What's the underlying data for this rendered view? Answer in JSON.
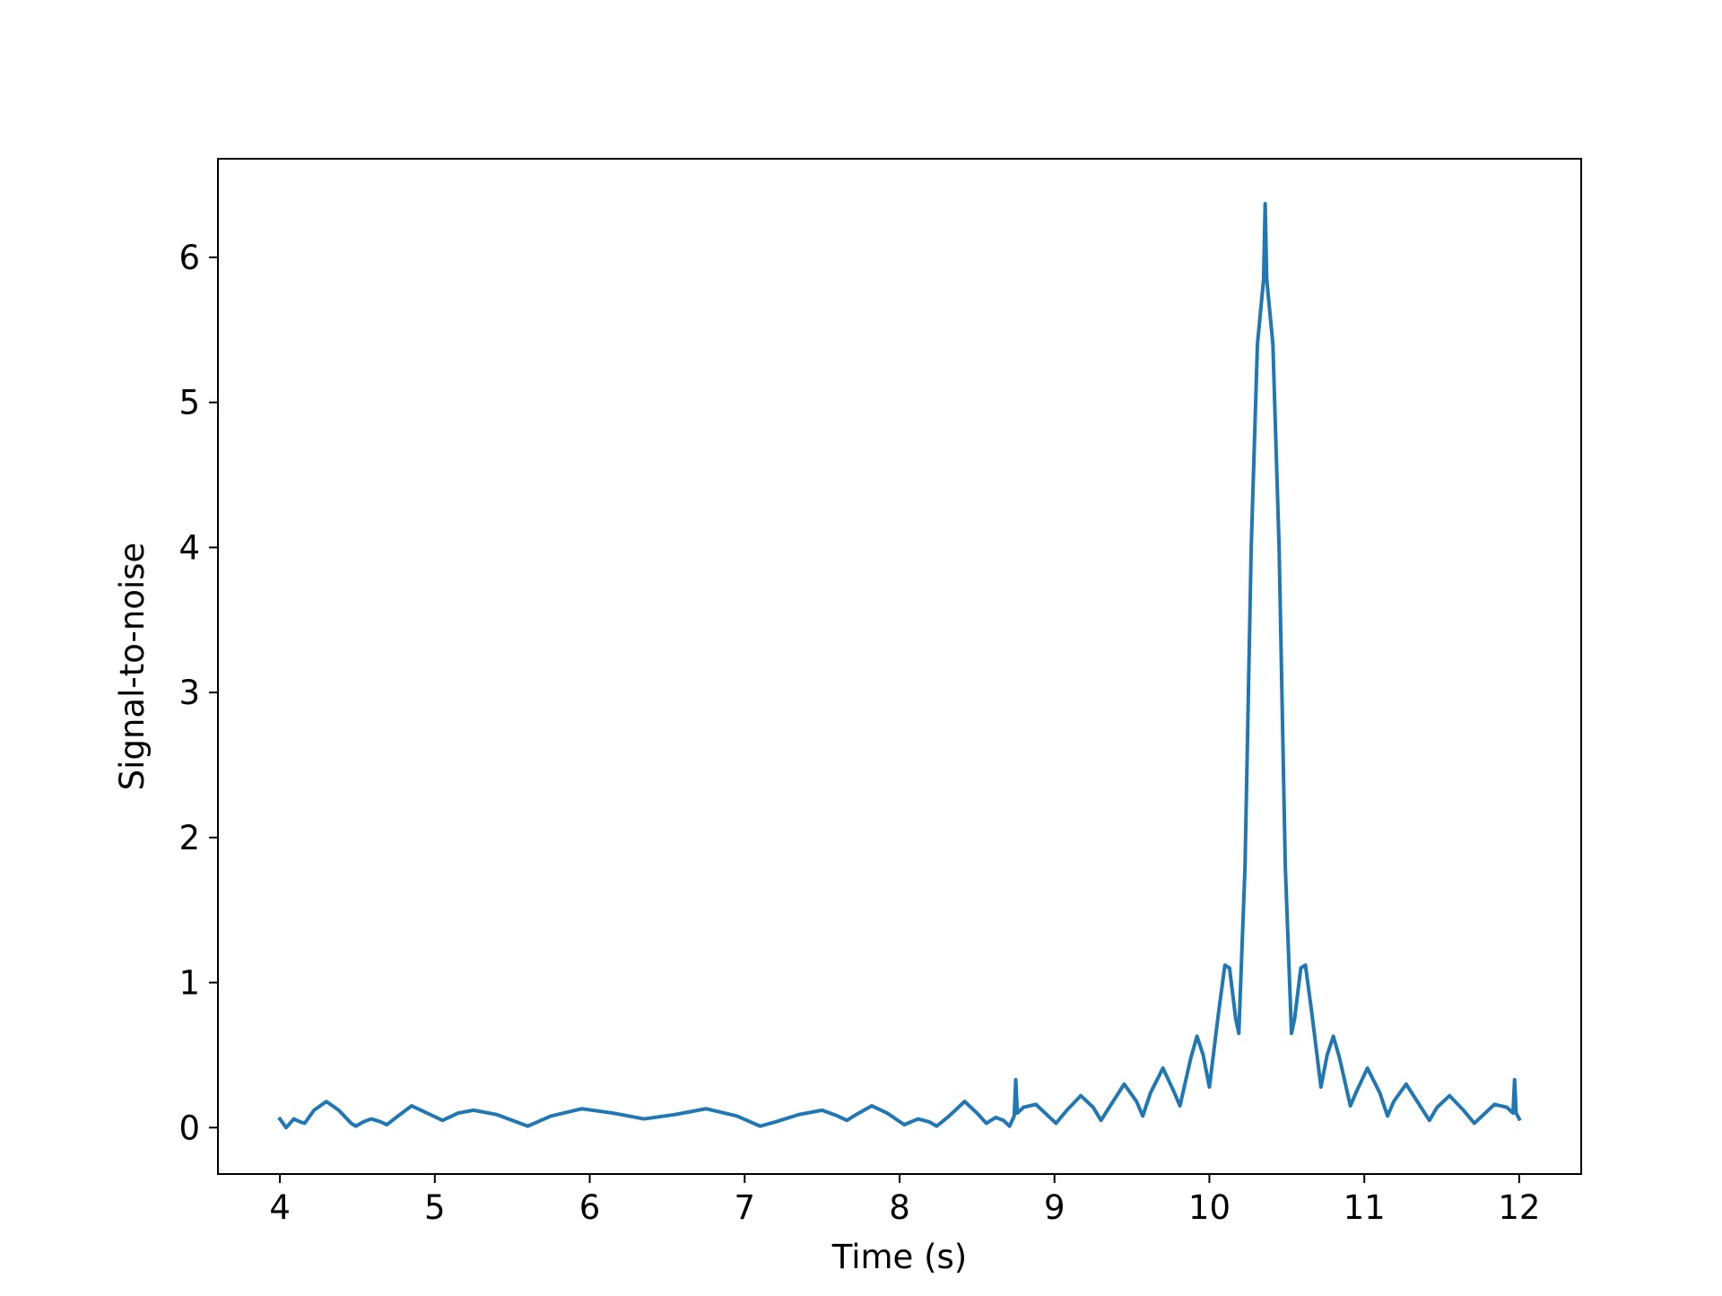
{
  "chart_data": {
    "type": "line",
    "title": "",
    "xlabel": "Time (s)",
    "ylabel": "Signal-to-noise",
    "xlim": [
      3.6,
      12.4
    ],
    "ylim": [
      -0.32,
      6.68
    ],
    "xticks": [
      4,
      5,
      6,
      7,
      8,
      9,
      10,
      11,
      12
    ],
    "yticks": [
      0,
      1,
      2,
      3,
      4,
      5,
      6
    ],
    "grid": false,
    "legend": "none",
    "series": [
      {
        "color": "#1f77b4",
        "points": [
          [
            4.0,
            0.06
          ],
          [
            4.04,
            0.0
          ],
          [
            4.09,
            0.06
          ],
          [
            4.13,
            0.04
          ],
          [
            4.16,
            0.03
          ],
          [
            4.22,
            0.12
          ],
          [
            4.3,
            0.18
          ],
          [
            4.38,
            0.12
          ],
          [
            4.46,
            0.03
          ],
          [
            4.49,
            0.01
          ],
          [
            4.54,
            0.04
          ],
          [
            4.59,
            0.06
          ],
          [
            4.65,
            0.04
          ],
          [
            4.69,
            0.02
          ],
          [
            4.75,
            0.07
          ],
          [
            4.85,
            0.15
          ],
          [
            4.95,
            0.1
          ],
          [
            5.05,
            0.05
          ],
          [
            5.15,
            0.1
          ],
          [
            5.25,
            0.12
          ],
          [
            5.4,
            0.09
          ],
          [
            5.55,
            0.03
          ],
          [
            5.6,
            0.01
          ],
          [
            5.75,
            0.08
          ],
          [
            5.95,
            0.13
          ],
          [
            6.15,
            0.1
          ],
          [
            6.35,
            0.06
          ],
          [
            6.55,
            0.09
          ],
          [
            6.75,
            0.13
          ],
          [
            6.95,
            0.08
          ],
          [
            7.1,
            0.01
          ],
          [
            7.2,
            0.04
          ],
          [
            7.35,
            0.09
          ],
          [
            7.5,
            0.12
          ],
          [
            7.6,
            0.08
          ],
          [
            7.66,
            0.05
          ],
          [
            7.72,
            0.09
          ],
          [
            7.82,
            0.15
          ],
          [
            7.92,
            0.1
          ],
          [
            8.03,
            0.02
          ],
          [
            8.12,
            0.06
          ],
          [
            8.19,
            0.04
          ],
          [
            8.24,
            0.01
          ],
          [
            8.32,
            0.08
          ],
          [
            8.42,
            0.18
          ],
          [
            8.5,
            0.1
          ],
          [
            8.56,
            0.03
          ],
          [
            8.62,
            0.07
          ],
          [
            8.67,
            0.05
          ],
          [
            8.71,
            0.01
          ],
          [
            8.74,
            0.08
          ],
          [
            8.75,
            0.33
          ],
          [
            8.76,
            0.1
          ],
          [
            8.8,
            0.14
          ],
          [
            8.88,
            0.16
          ],
          [
            8.96,
            0.08
          ],
          [
            9.01,
            0.03
          ],
          [
            9.08,
            0.12
          ],
          [
            9.17,
            0.22
          ],
          [
            9.25,
            0.14
          ],
          [
            9.3,
            0.05
          ],
          [
            9.36,
            0.15
          ],
          [
            9.45,
            0.3
          ],
          [
            9.53,
            0.18
          ],
          [
            9.57,
            0.08
          ],
          [
            9.62,
            0.24
          ],
          [
            9.7,
            0.41
          ],
          [
            9.77,
            0.25
          ],
          [
            9.81,
            0.15
          ],
          [
            9.88,
            0.48
          ],
          [
            9.92,
            0.63
          ],
          [
            9.96,
            0.5
          ],
          [
            10.0,
            0.28
          ],
          [
            10.06,
            0.8
          ],
          [
            10.1,
            1.12
          ],
          [
            10.13,
            1.1
          ],
          [
            10.17,
            0.75
          ],
          [
            10.19,
            0.65
          ],
          [
            10.23,
            1.8
          ],
          [
            10.27,
            4.0
          ],
          [
            10.31,
            5.4
          ],
          [
            10.35,
            5.85
          ],
          [
            10.36,
            6.37
          ],
          [
            10.37,
            5.85
          ],
          [
            10.41,
            5.4
          ],
          [
            10.45,
            4.0
          ],
          [
            10.49,
            1.8
          ],
          [
            10.53,
            0.65
          ],
          [
            10.55,
            0.75
          ],
          [
            10.59,
            1.1
          ],
          [
            10.62,
            1.12
          ],
          [
            10.66,
            0.8
          ],
          [
            10.72,
            0.28
          ],
          [
            10.76,
            0.5
          ],
          [
            10.8,
            0.63
          ],
          [
            10.84,
            0.48
          ],
          [
            10.91,
            0.15
          ],
          [
            10.95,
            0.25
          ],
          [
            11.02,
            0.41
          ],
          [
            11.1,
            0.24
          ],
          [
            11.15,
            0.08
          ],
          [
            11.19,
            0.18
          ],
          [
            11.27,
            0.3
          ],
          [
            11.36,
            0.15
          ],
          [
            11.42,
            0.05
          ],
          [
            11.47,
            0.14
          ],
          [
            11.55,
            0.22
          ],
          [
            11.64,
            0.12
          ],
          [
            11.71,
            0.03
          ],
          [
            11.76,
            0.08
          ],
          [
            11.84,
            0.16
          ],
          [
            11.92,
            0.14
          ],
          [
            11.96,
            0.1
          ],
          [
            11.97,
            0.33
          ],
          [
            11.98,
            0.1
          ],
          [
            12.0,
            0.06
          ]
        ]
      }
    ]
  }
}
